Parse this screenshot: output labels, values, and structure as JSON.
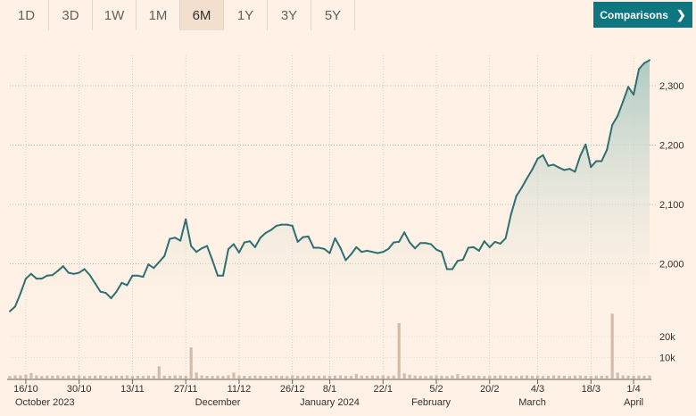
{
  "range_buttons": [
    {
      "label": "1D",
      "active": false
    },
    {
      "label": "3D",
      "active": false
    },
    {
      "label": "1W",
      "active": false
    },
    {
      "label": "1M",
      "active": false
    },
    {
      "label": "6M",
      "active": true
    },
    {
      "label": "1Y",
      "active": false
    },
    {
      "label": "3Y",
      "active": false
    },
    {
      "label": "5Y",
      "active": false
    }
  ],
  "comparisons_button": {
    "label": "Comparisons",
    "icon": "chevron-right-icon"
  },
  "colors": {
    "line": "#2e6f72",
    "area_top": "#a9c9c2",
    "volume": "#d2bca8",
    "accent": "#0d7680"
  },
  "chart_data": {
    "type": "area",
    "title": "",
    "xlabel": "",
    "ylabel": "",
    "ylim": [
      1920,
      2345
    ],
    "y_ticks": [
      {
        "value": 2000,
        "label": "2,000"
      },
      {
        "value": 2100,
        "label": "2,100"
      },
      {
        "value": 2200,
        "label": "2,200"
      },
      {
        "value": 2300,
        "label": "2,300"
      }
    ],
    "x_ticks": [
      {
        "index": 3,
        "label": "16/10"
      },
      {
        "index": 13,
        "label": "30/10"
      },
      {
        "index": 23,
        "label": "13/11"
      },
      {
        "index": 33,
        "label": "27/11"
      },
      {
        "index": 43,
        "label": "11/12"
      },
      {
        "index": 53,
        "label": "26/12"
      },
      {
        "index": 60,
        "label": "8/1"
      },
      {
        "index": 70,
        "label": "22/1"
      },
      {
        "index": 80,
        "label": "5/2"
      },
      {
        "index": 90,
        "label": "20/2"
      },
      {
        "index": 99,
        "label": "4/3"
      },
      {
        "index": 109,
        "label": "18/3"
      },
      {
        "index": 117,
        "label": "1/4"
      }
    ],
    "month_labels": [
      {
        "index": 7,
        "label": "October 2023"
      },
      {
        "index": 39,
        "label": "December"
      },
      {
        "index": 60,
        "label": "January 2024"
      },
      {
        "index": 79,
        "label": "February"
      },
      {
        "index": 98,
        "label": "March"
      },
      {
        "index": 117,
        "label": "April"
      }
    ],
    "series": [
      {
        "values": [
          1920,
          1928,
          1950,
          1975,
          1983,
          1975,
          1975,
          1980,
          1981,
          1988,
          1996,
          1985,
          1983,
          1985,
          1991,
          1981,
          1967,
          1953,
          1951,
          1942,
          1953,
          1968,
          1964,
          1980,
          1980,
          1978,
          1999,
          1993,
          2003,
          2013,
          2042,
          2044,
          2039,
          2075,
          2030,
          2020,
          2026,
          2030,
          2006,
          1980,
          1980,
          2025,
          2033,
          2019,
          2036,
          2038,
          2028,
          2044,
          2052,
          2057,
          2064,
          2066,
          2066,
          2064,
          2037,
          2045,
          2046,
          2027,
          2027,
          2025,
          2018,
          2043,
          2027,
          2006,
          2016,
          2028,
          2020,
          2022,
          2020,
          2018,
          2020,
          2025,
          2036,
          2037,
          2053,
          2036,
          2026,
          2035,
          2035,
          2033,
          2024,
          2020,
          1991,
          1991,
          2005,
          2007,
          2027,
          2028,
          2022,
          2038,
          2028,
          2037,
          2034,
          2043,
          2083,
          2114,
          2128,
          2144,
          2159,
          2177,
          2183,
          2165,
          2167,
          2162,
          2158,
          2160,
          2155,
          2182,
          2201,
          2163,
          2173,
          2173,
          2192,
          2234,
          2249,
          2273,
          2298,
          2285,
          2328,
          2338,
          2343
        ]
      }
    ],
    "volume": {
      "y_ticks": [
        {
          "value": 10000,
          "label": "10k"
        },
        {
          "value": 20000,
          "label": "20k"
        }
      ],
      "values": [
        1200,
        1500,
        1500,
        1800,
        2600,
        1500,
        1200,
        1400,
        1300,
        1500,
        1200,
        1400,
        1300,
        1500,
        1200,
        1300,
        1400,
        1500,
        1300,
        1200,
        1400,
        1300,
        1500,
        1200,
        1300,
        1200,
        1400,
        1300,
        5800,
        1400,
        1300,
        1500,
        1400,
        1300,
        14800,
        2800,
        1500,
        1300,
        1200,
        1400,
        1200,
        1500,
        2800,
        1400,
        1300,
        1200,
        1400,
        1300,
        1200,
        1300,
        1400,
        1300,
        1200,
        1500,
        1300,
        1200,
        1400,
        1300,
        1200,
        1400,
        1300,
        1400,
        1500,
        1300,
        1200,
        2200,
        1400,
        1300,
        1400,
        1300,
        1500,
        1200,
        1400,
        26400,
        2400,
        1800,
        1400,
        1300,
        1200,
        1400,
        1500,
        1300,
        1200,
        1400,
        2200,
        1300,
        1500,
        1400,
        1300,
        1200,
        1400,
        1300,
        1500,
        1400,
        1300,
        1200,
        1400,
        1500,
        1300,
        1400,
        1200,
        1300,
        1500,
        1400,
        1300,
        1200,
        1400,
        1500,
        1300,
        1200,
        1400,
        1300,
        1400,
        30900,
        2800,
        1500,
        1400,
        1300,
        1400,
        1300,
        1500
      ]
    }
  }
}
